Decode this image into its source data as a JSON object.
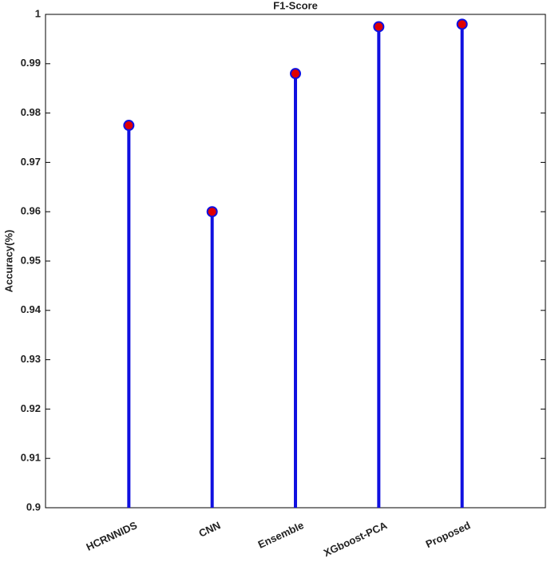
{
  "chart_data": {
    "type": "stem",
    "title": "F1-Score",
    "y_label": "Accuracy(%)",
    "categories": [
      "HCRNNIDS",
      "CNN",
      "Ensemble",
      "XGboost-PCA",
      "Proposed"
    ],
    "values": [
      0.9775,
      0.96,
      0.988,
      0.9975,
      0.998
    ],
    "color": "#1010e0",
    "marker_color": "#e00000",
    "ylim": [
      0.9,
      1
    ],
    "yticks": [
      0.9,
      0.91,
      0.92,
      0.93,
      0.94,
      0.95,
      0.96,
      0.97,
      0.98,
      0.99,
      1
    ],
    "grid": false
  }
}
